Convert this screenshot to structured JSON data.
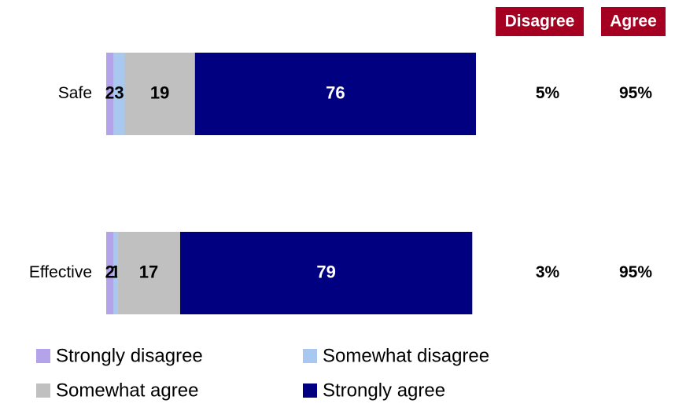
{
  "chart_data": {
    "type": "stacked-bar-horizontal",
    "categories": [
      "Safe",
      "Effective"
    ],
    "series": [
      {
        "name": "Strongly disagree",
        "color": "#b4a2ea",
        "values": [
          2,
          2
        ]
      },
      {
        "name": "Somewhat disagree",
        "color": "#a8c8f0",
        "values": [
          3,
          1
        ]
      },
      {
        "name": "Somewhat agree",
        "color": "#c0c0c0",
        "values": [
          19,
          17
        ]
      },
      {
        "name": "Strongly agree",
        "color": "#000080",
        "values": [
          76,
          79
        ]
      }
    ],
    "xlim": [
      0,
      100
    ],
    "summary": [
      {
        "name": "Disagree",
        "color": "#a50021",
        "values": [
          5,
          3
        ],
        "value_labels": [
          "5%",
          "3%"
        ]
      },
      {
        "name": "Agree",
        "color": "#a50021",
        "values": [
          95,
          95
        ],
        "value_labels": [
          "95%",
          "95%"
        ]
      }
    ]
  }
}
